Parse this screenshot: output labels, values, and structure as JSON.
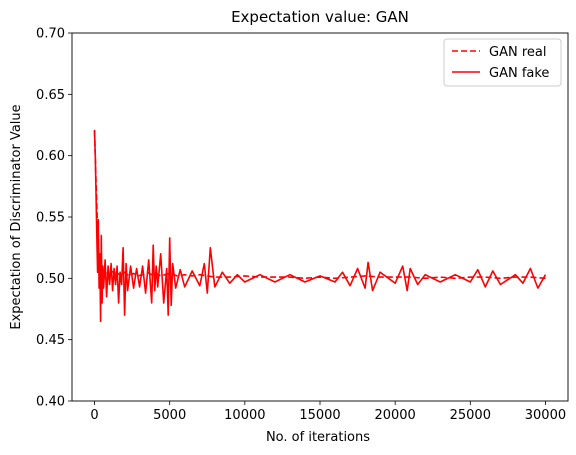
{
  "chart_data": {
    "type": "line",
    "title": "Expectation value: GAN",
    "xlabel": "No. of iterations",
    "ylabel": "Expectation of Discriminator Value",
    "xlim": [
      -1500,
      31500
    ],
    "ylim": [
      0.4,
      0.7
    ],
    "x_ticks": [
      0,
      5000,
      10000,
      15000,
      20000,
      25000,
      30000
    ],
    "x_tick_labels": [
      "0",
      "5000",
      "10000",
      "15000",
      "20000",
      "25000",
      "30000"
    ],
    "y_ticks": [
      0.4,
      0.45,
      0.5,
      0.55,
      0.6,
      0.65,
      0.7
    ],
    "y_tick_labels": [
      "0.40",
      "0.45",
      "0.50",
      "0.55",
      "0.60",
      "0.65",
      "0.70"
    ],
    "grid": false,
    "legend_position": "top-right",
    "series": [
      {
        "name": "GAN real",
        "style": "dashed",
        "color": "#ff0000",
        "x": [
          0,
          100,
          200,
          300,
          400,
          500,
          650,
          800,
          1000,
          1250,
          1500,
          1750,
          2000,
          2300,
          2600,
          2900,
          3200,
          3500,
          3800,
          4100,
          4400,
          4700,
          5000,
          5500,
          6000,
          6500,
          7000,
          7500,
          8000,
          9000,
          10000,
          11000,
          12000,
          13000,
          14000,
          15000,
          16000,
          17000,
          18000,
          19000,
          20000,
          21000,
          22000,
          23000,
          24000,
          25000,
          26000,
          27000,
          28000,
          29000,
          30000
        ],
        "y": [
          0.62,
          0.58,
          0.54,
          0.515,
          0.51,
          0.505,
          0.502,
          0.505,
          0.503,
          0.506,
          0.504,
          0.503,
          0.505,
          0.502,
          0.504,
          0.502,
          0.503,
          0.505,
          0.503,
          0.504,
          0.502,
          0.503,
          0.504,
          0.502,
          0.503,
          0.502,
          0.503,
          0.502,
          0.501,
          0.501,
          0.502,
          0.501,
          0.501,
          0.501,
          0.5,
          0.501,
          0.5,
          0.501,
          0.502,
          0.501,
          0.501,
          0.501,
          0.5,
          0.501,
          0.5,
          0.501,
          0.501,
          0.5,
          0.501,
          0.501,
          0.5
        ]
      },
      {
        "name": "GAN fake",
        "style": "solid",
        "color": "#ff0000",
        "x": [
          0,
          50,
          100,
          150,
          200,
          250,
          300,
          350,
          400,
          450,
          500,
          550,
          600,
          700,
          800,
          900,
          1000,
          1100,
          1200,
          1300,
          1400,
          1500,
          1600,
          1700,
          1800,
          1900,
          2000,
          2100,
          2200,
          2400,
          2600,
          2800,
          3000,
          3200,
          3400,
          3600,
          3800,
          3900,
          4000,
          4100,
          4200,
          4400,
          4600,
          4800,
          4900,
          5000,
          5100,
          5200,
          5400,
          5700,
          6000,
          6500,
          7000,
          7300,
          7500,
          7700,
          8000,
          8500,
          9000,
          9500,
          10000,
          11000,
          12000,
          13000,
          14000,
          15000,
          16000,
          16500,
          17000,
          17500,
          18000,
          18200,
          18500,
          19000,
          20000,
          20500,
          20800,
          21000,
          21500,
          22000,
          23000,
          24000,
          25000,
          25500,
          26000,
          26500,
          27000,
          28000,
          28500,
          29000,
          29500,
          30000
        ],
        "y": [
          0.621,
          0.6,
          0.57,
          0.535,
          0.505,
          0.548,
          0.492,
          0.52,
          0.465,
          0.535,
          0.48,
          0.51,
          0.492,
          0.515,
          0.485,
          0.51,
          0.495,
          0.512,
          0.49,
          0.508,
          0.495,
          0.51,
          0.48,
          0.505,
          0.495,
          0.525,
          0.47,
          0.512,
          0.49,
          0.51,
          0.492,
          0.508,
          0.493,
          0.51,
          0.488,
          0.515,
          0.48,
          0.527,
          0.49,
          0.51,
          0.493,
          0.52,
          0.48,
          0.508,
          0.47,
          0.533,
          0.478,
          0.512,
          0.492,
          0.507,
          0.493,
          0.506,
          0.494,
          0.512,
          0.488,
          0.525,
          0.493,
          0.505,
          0.496,
          0.503,
          0.497,
          0.503,
          0.497,
          0.503,
          0.497,
          0.502,
          0.497,
          0.505,
          0.494,
          0.508,
          0.492,
          0.513,
          0.49,
          0.505,
          0.496,
          0.51,
          0.49,
          0.508,
          0.495,
          0.503,
          0.497,
          0.503,
          0.497,
          0.507,
          0.493,
          0.506,
          0.495,
          0.503,
          0.496,
          0.508,
          0.492,
          0.503
        ]
      }
    ]
  }
}
